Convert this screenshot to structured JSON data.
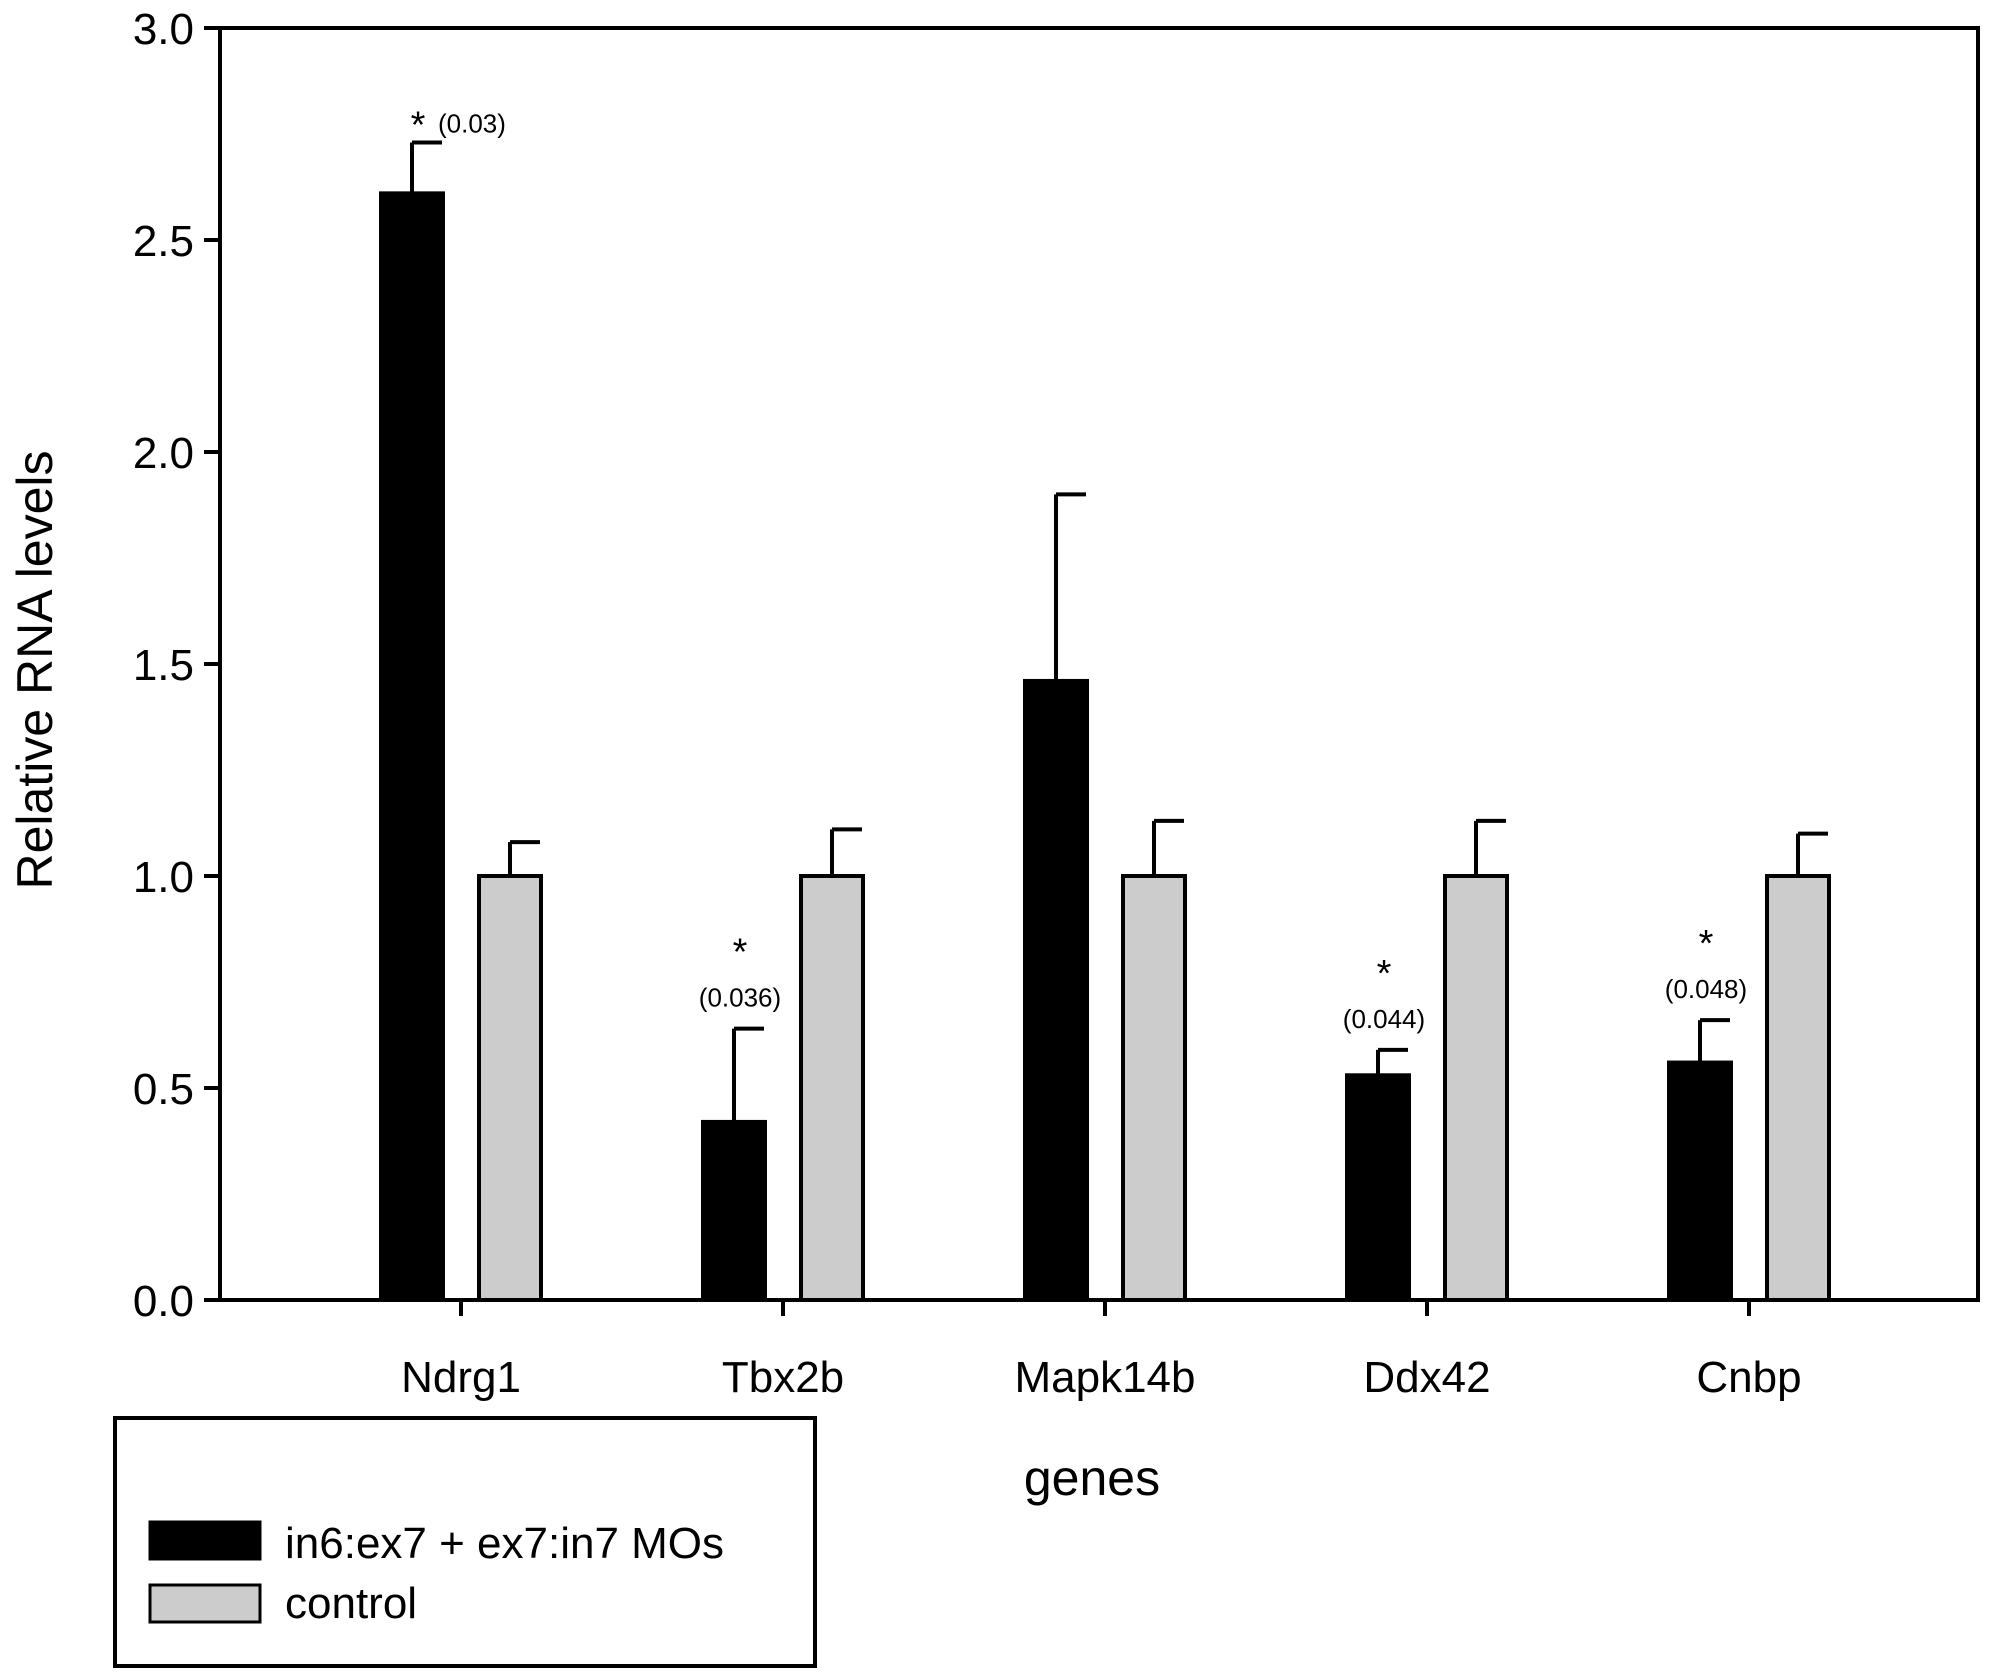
{
  "chart_data": {
    "type": "bar",
    "title": "",
    "xlabel": "genes",
    "ylabel": "Relative RNA levels",
    "ylim": [
      0,
      3.0
    ],
    "yticks": [
      "0.0",
      "0.5",
      "1.0",
      "1.5",
      "2.0",
      "2.5",
      "3.0"
    ],
    "ytick_values": [
      0,
      0.5,
      1.0,
      1.5,
      2.0,
      2.5,
      3.0
    ],
    "categories": [
      "Ndrg1",
      "Tbx2b",
      "Mapk14b",
      "Ddx42",
      "Cnbp"
    ],
    "series": [
      {
        "name": "in6:ex7 + ex7:in7 MOs",
        "color": "#000000",
        "values": [
          2.61,
          0.42,
          1.46,
          0.53,
          0.56
        ],
        "errors": [
          0.12,
          0.22,
          0.44,
          0.06,
          0.1
        ]
      },
      {
        "name": "control",
        "color": "#cccccc",
        "values": [
          1.0,
          1.0,
          1.0,
          1.0,
          1.0
        ],
        "errors": [
          0.08,
          0.11,
          0.13,
          0.13,
          0.1
        ]
      }
    ],
    "annotations": [
      {
        "category": "Ndrg1",
        "star": "*",
        "p": "(0.03)"
      },
      {
        "category": "Tbx2b",
        "star": "*",
        "p": "(0.036)"
      },
      {
        "category": "Ddx42",
        "star": "*",
        "p": "(0.044)"
      },
      {
        "category": "Cnbp",
        "star": "*",
        "p": "(0.048)"
      }
    ],
    "grid": false,
    "legend_position": "bottom-left"
  }
}
